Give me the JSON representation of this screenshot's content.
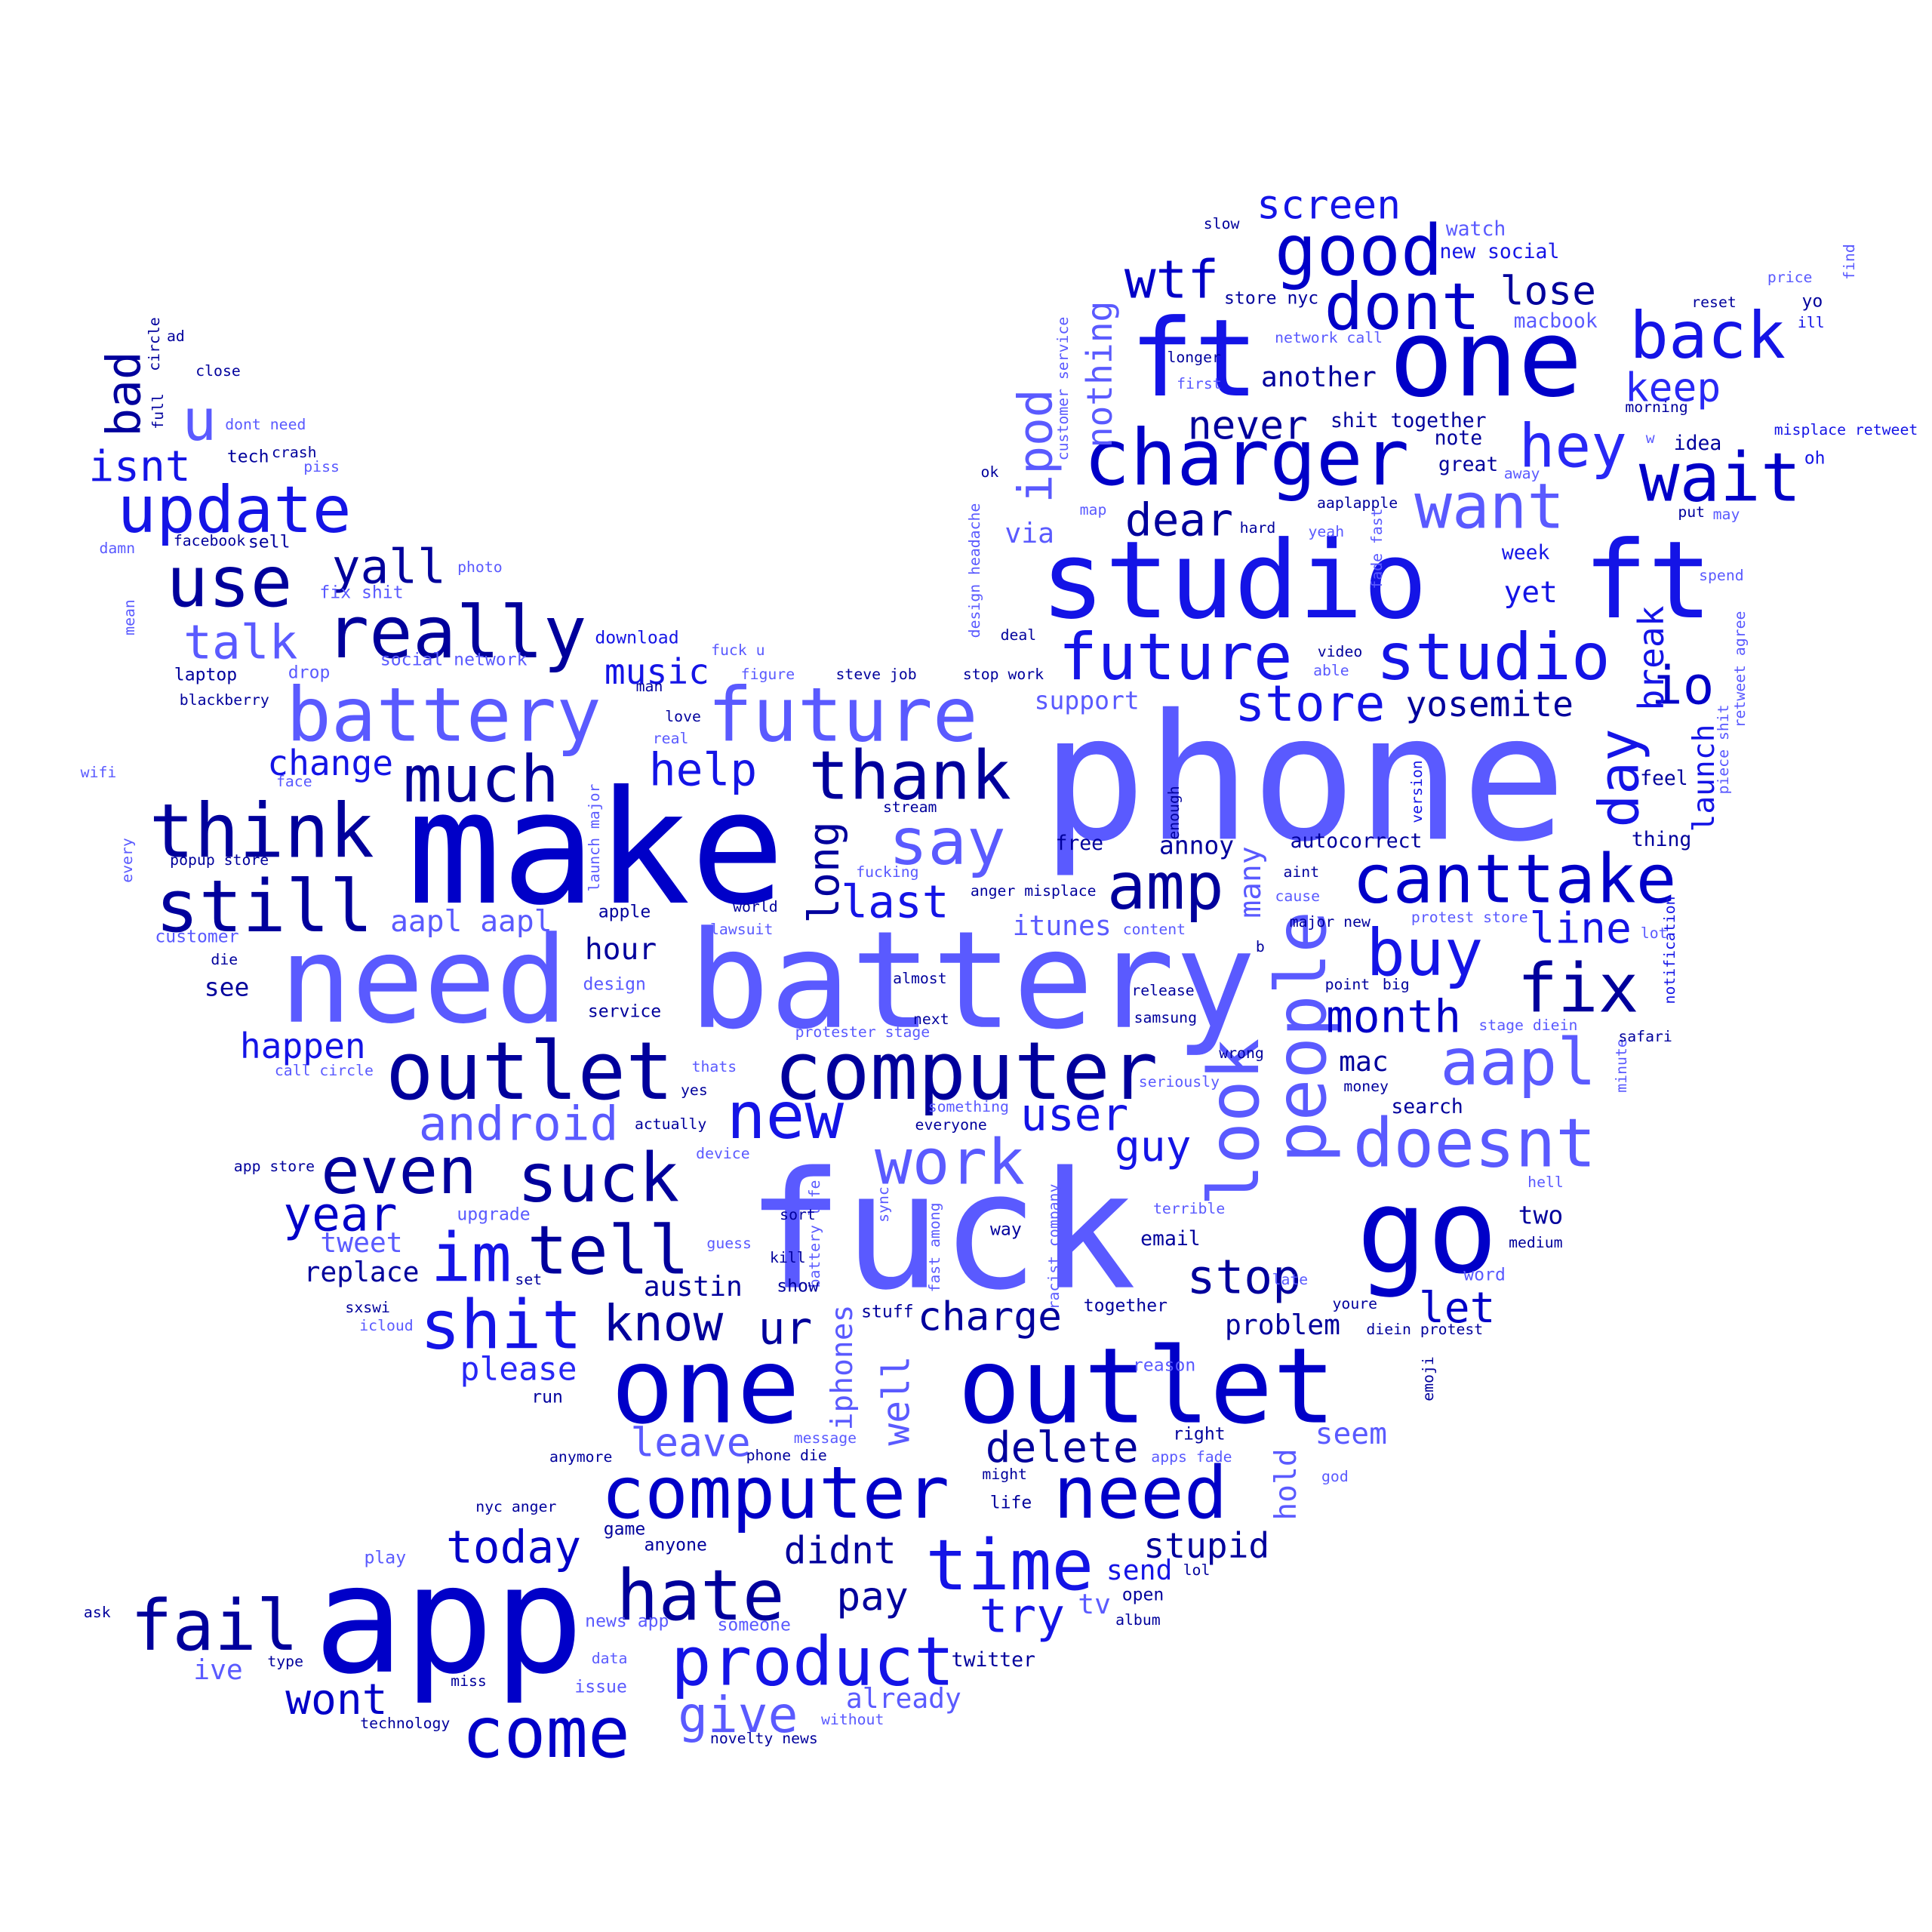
{
  "words": [
    {
      "t": "phone",
      "c": 4
    },
    {
      "t": "make",
      "c": 1
    },
    {
      "t": "battery",
      "c": 4
    },
    {
      "t": "fuck",
      "c": 4
    },
    {
      "t": "need",
      "c": 4
    },
    {
      "t": "app",
      "c": 1
    },
    {
      "t": "one",
      "c": 1
    },
    {
      "t": "outlet",
      "c": 1
    },
    {
      "t": "ft",
      "c": 2
    },
    {
      "t": "one",
      "c": 1
    },
    {
      "t": "studio",
      "c": 2
    },
    {
      "t": "ft",
      "c": 2
    },
    {
      "t": "go",
      "c": 1
    },
    {
      "t": "computer",
      "c": 5
    },
    {
      "t": "outlet",
      "c": 5
    },
    {
      "t": "battery",
      "c": 4
    },
    {
      "t": "future",
      "c": 4
    },
    {
      "t": "computer",
      "c": 1
    },
    {
      "t": "need",
      "c": 1
    },
    {
      "t": "charger",
      "c": 1
    },
    {
      "t": "future",
      "c": 2
    },
    {
      "t": "studio",
      "c": 2
    },
    {
      "t": "think",
      "c": 5
    },
    {
      "t": "still",
      "c": 5
    },
    {
      "t": "update",
      "c": 2
    },
    {
      "t": "really",
      "c": 5
    },
    {
      "t": "use",
      "c": 5
    },
    {
      "t": "product",
      "c": 2
    },
    {
      "t": "fail",
      "c": 5
    },
    {
      "t": "hate",
      "c": 5
    },
    {
      "t": "time",
      "c": 2
    },
    {
      "t": "come",
      "c": 1
    },
    {
      "t": "canttake",
      "c": 1
    },
    {
      "t": "people",
      "c": 4
    },
    {
      "t": "look",
      "c": 4
    },
    {
      "t": "suck",
      "c": 5
    },
    {
      "t": "even",
      "c": 5
    },
    {
      "t": "tell",
      "c": 5
    },
    {
      "t": "im",
      "c": 2
    },
    {
      "t": "shit",
      "c": 2
    },
    {
      "t": "know",
      "c": 5
    },
    {
      "t": "much",
      "c": 5
    },
    {
      "t": "thank",
      "c": 5
    },
    {
      "t": "say",
      "c": 4
    },
    {
      "t": "amp",
      "c": 5
    },
    {
      "t": "fix",
      "c": 5
    },
    {
      "t": "aapl",
      "c": 4
    },
    {
      "t": "doesnt",
      "c": 4
    },
    {
      "t": "new",
      "c": 2
    },
    {
      "t": "work",
      "c": 4
    },
    {
      "t": "good",
      "c": 1
    },
    {
      "t": "dont",
      "c": 1
    },
    {
      "t": "back",
      "c": 2
    },
    {
      "t": "hey",
      "c": 3
    },
    {
      "t": "wait",
      "c": 1
    },
    {
      "t": "want",
      "c": 4
    },
    {
      "t": "buy",
      "c": 2
    },
    {
      "t": "day",
      "c": 2
    },
    {
      "t": "io",
      "c": 1
    },
    {
      "t": "wtf",
      "c": 1
    },
    {
      "t": "screen",
      "c": 2
    },
    {
      "t": "lose",
      "c": 5
    },
    {
      "t": "keep",
      "c": 3
    },
    {
      "t": "dear",
      "c": 5
    },
    {
      "t": "never",
      "c": 5
    },
    {
      "t": "ipod",
      "c": 4
    },
    {
      "t": "nothing",
      "c": 4
    },
    {
      "t": "store",
      "c": 2
    },
    {
      "t": "yosemite",
      "c": 5
    },
    {
      "t": "month",
      "c": 1
    },
    {
      "t": "line",
      "c": 2
    },
    {
      "t": "launch",
      "c": 2
    },
    {
      "t": "break",
      "c": 2
    },
    {
      "t": "stop",
      "c": 5
    },
    {
      "t": "let",
      "c": 1
    },
    {
      "t": "delete",
      "c": 5
    },
    {
      "t": "leave",
      "c": 4
    },
    {
      "t": "well",
      "c": 4
    },
    {
      "t": "iphones",
      "c": 4
    },
    {
      "t": "charge",
      "c": 5
    },
    {
      "t": "ur",
      "c": 5
    },
    {
      "t": "please",
      "c": 3
    },
    {
      "t": "austin",
      "c": 5
    },
    {
      "t": "guy",
      "c": 2
    },
    {
      "t": "user",
      "c": 2
    },
    {
      "t": "android",
      "c": 4
    },
    {
      "t": "year",
      "c": 1
    },
    {
      "t": "replace",
      "c": 5
    },
    {
      "t": "tweet",
      "c": 4
    },
    {
      "t": "happen",
      "c": 2
    },
    {
      "t": "long",
      "c": 5
    },
    {
      "t": "help",
      "c": 2
    },
    {
      "t": "last",
      "c": 2
    },
    {
      "t": "music",
      "c": 2
    },
    {
      "t": "change",
      "c": 2
    },
    {
      "t": "talk",
      "c": 4
    },
    {
      "t": "yall",
      "c": 5
    },
    {
      "t": "u",
      "c": 4
    },
    {
      "t": "bad",
      "c": 5
    },
    {
      "t": "isnt",
      "c": 2
    },
    {
      "t": "today",
      "c": 1
    },
    {
      "t": "didnt",
      "c": 5
    },
    {
      "t": "pay",
      "c": 5
    },
    {
      "t": "try",
      "c": 2
    },
    {
      "t": "stupid",
      "c": 5
    },
    {
      "t": "give",
      "c": 4
    },
    {
      "t": "wont",
      "c": 1
    },
    {
      "t": "ive",
      "c": 4
    },
    {
      "t": "already",
      "c": 4
    },
    {
      "t": "send",
      "c": 2
    },
    {
      "t": "tv",
      "c": 4
    },
    {
      "t": "twitter",
      "c": 5
    },
    {
      "t": "hold",
      "c": 4
    },
    {
      "t": "seem",
      "c": 4
    },
    {
      "t": "problem",
      "c": 5
    },
    {
      "t": "two",
      "c": 5
    },
    {
      "t": "many",
      "c": 4
    },
    {
      "t": "annoy",
      "c": 5
    },
    {
      "t": "autocorrect",
      "c": 5
    },
    {
      "t": "itunes",
      "c": 4
    },
    {
      "t": "via",
      "c": 4
    },
    {
      "t": "aapl aapl",
      "c": 4
    },
    {
      "t": "hour",
      "c": 5
    },
    {
      "t": "mac",
      "c": 5
    },
    {
      "t": "yet",
      "c": 2
    },
    {
      "t": "another",
      "c": 5
    },
    {
      "t": "support",
      "c": 4
    },
    {
      "t": "see",
      "c": 5
    },
    {
      "t": "search",
      "c": 5
    },
    {
      "t": "email",
      "c": 5
    },
    {
      "t": "feel",
      "c": 5
    },
    {
      "t": "thing",
      "c": 5
    },
    {
      "t": "free",
      "c": 5
    },
    {
      "t": "week",
      "c": 2
    },
    {
      "t": "idea",
      "c": 5
    },
    {
      "t": "great",
      "c": 5
    },
    {
      "t": "note",
      "c": 5
    },
    {
      "t": "shit together",
      "c": 5
    },
    {
      "t": "watch",
      "c": 4
    },
    {
      "t": "new social",
      "c": 2
    },
    {
      "t": "macbook",
      "c": 4
    },
    {
      "t": "store nyc",
      "c": 5
    },
    {
      "t": "slow",
      "c": 5
    },
    {
      "t": "longer",
      "c": 5
    },
    {
      "t": "first",
      "c": 4
    },
    {
      "t": "network call",
      "c": 4
    },
    {
      "t": "customer service",
      "c": 4
    },
    {
      "t": "design headache",
      "c": 4
    },
    {
      "t": "map",
      "c": 4
    },
    {
      "t": "ok",
      "c": 5
    },
    {
      "t": "hard",
      "c": 5
    },
    {
      "t": "yeah",
      "c": 4
    },
    {
      "t": "aaplapple",
      "c": 5
    },
    {
      "t": "fade fast",
      "c": 4
    },
    {
      "t": "deal",
      "c": 5
    },
    {
      "t": "video",
      "c": 5
    },
    {
      "t": "able",
      "c": 4
    },
    {
      "t": "stop work",
      "c": 5
    },
    {
      "t": "retweet agree",
      "c": 4
    },
    {
      "t": "piece shit",
      "c": 4
    },
    {
      "t": "spend",
      "c": 4
    },
    {
      "t": "put",
      "c": 5
    },
    {
      "t": "may",
      "c": 4
    },
    {
      "t": "oh",
      "c": 2
    },
    {
      "t": "misplace retweet",
      "c": 2
    },
    {
      "t": "morning",
      "c": 5
    },
    {
      "t": "away",
      "c": 4
    },
    {
      "t": "w",
      "c": 4
    },
    {
      "t": "reset",
      "c": 5
    },
    {
      "t": "yo",
      "c": 5
    },
    {
      "t": "ill",
      "c": 2
    },
    {
      "t": "price",
      "c": 4
    },
    {
      "t": "find",
      "c": 4
    },
    {
      "t": "steve job",
      "c": 5
    },
    {
      "t": "figure",
      "c": 4
    },
    {
      "t": "fuck u",
      "c": 4
    },
    {
      "t": "download",
      "c": 2
    },
    {
      "t": "man",
      "c": 5
    },
    {
      "t": "love",
      "c": 5
    },
    {
      "t": "real",
      "c": 4
    },
    {
      "t": "stream",
      "c": 5
    },
    {
      "t": "fucking",
      "c": 4
    },
    {
      "t": "launch major",
      "c": 4
    },
    {
      "t": "enough",
      "c": 5
    },
    {
      "t": "version",
      "c": 2
    },
    {
      "t": "notification",
      "c": 2
    },
    {
      "t": "minute",
      "c": 4
    },
    {
      "t": "safari",
      "c": 5
    },
    {
      "t": "lot",
      "c": 4
    },
    {
      "t": "anger misplace",
      "c": 5
    },
    {
      "t": "content",
      "c": 4
    },
    {
      "t": "cause",
      "c": 4
    },
    {
      "t": "aint",
      "c": 5
    },
    {
      "t": "major new",
      "c": 5
    },
    {
      "t": "protest store",
      "c": 4
    },
    {
      "t": "b",
      "c": 5
    },
    {
      "t": "point",
      "c": 5
    },
    {
      "t": "big",
      "c": 5
    },
    {
      "t": "stage diein",
      "c": 4
    },
    {
      "t": "release",
      "c": 5
    },
    {
      "t": "samsung",
      "c": 5
    },
    {
      "t": "wrong",
      "c": 5
    },
    {
      "t": "money",
      "c": 5
    },
    {
      "t": "seriously",
      "c": 4
    },
    {
      "t": "almost",
      "c": 5
    },
    {
      "t": "next",
      "c": 5
    },
    {
      "t": "protester stage",
      "c": 4
    },
    {
      "t": "thats",
      "c": 4
    },
    {
      "t": "yes",
      "c": 5
    },
    {
      "t": "actually",
      "c": 5
    },
    {
      "t": "something",
      "c": 4
    },
    {
      "t": "everyone",
      "c": 5
    },
    {
      "t": "device",
      "c": 4
    },
    {
      "t": "apple",
      "c": 5
    },
    {
      "t": "world",
      "c": 5
    },
    {
      "t": "lawsuit",
      "c": 4
    },
    {
      "t": "design",
      "c": 4
    },
    {
      "t": "service",
      "c": 5
    },
    {
      "t": "hell",
      "c": 4
    },
    {
      "t": "terrible",
      "c": 4
    },
    {
      "t": "medium",
      "c": 5
    },
    {
      "t": "late",
      "c": 4
    },
    {
      "t": "word",
      "c": 4
    },
    {
      "t": "youre",
      "c": 5
    },
    {
      "t": "diein protest",
      "c": 5
    },
    {
      "t": "emoji",
      "c": 5
    },
    {
      "t": "reason",
      "c": 4
    },
    {
      "t": "together",
      "c": 5
    },
    {
      "t": "way",
      "c": 5
    },
    {
      "t": "racist company",
      "c": 4
    },
    {
      "t": "fast among",
      "c": 4
    },
    {
      "t": "sync",
      "c": 4
    },
    {
      "t": "battery life",
      "c": 4
    },
    {
      "t": "sort",
      "c": 5
    },
    {
      "t": "guess",
      "c": 4
    },
    {
      "t": "kill",
      "c": 5
    },
    {
      "t": "show",
      "c": 5
    },
    {
      "t": "stuff",
      "c": 5
    },
    {
      "t": "set",
      "c": 5
    },
    {
      "t": "upgrade",
      "c": 4
    },
    {
      "t": "sxswi",
      "c": 5
    },
    {
      "t": "icloud",
      "c": 4
    },
    {
      "t": "run",
      "c": 5
    },
    {
      "t": "anymore",
      "c": 5
    },
    {
      "t": "phone die",
      "c": 5
    },
    {
      "t": "message",
      "c": 4
    },
    {
      "t": "right",
      "c": 5
    },
    {
      "t": "apps fade",
      "c": 4
    },
    {
      "t": "god",
      "c": 4
    },
    {
      "t": "might",
      "c": 5
    },
    {
      "t": "life",
      "c": 5
    },
    {
      "t": "nyc anger",
      "c": 5
    },
    {
      "t": "game",
      "c": 5
    },
    {
      "t": "anyone",
      "c": 5
    },
    {
      "t": "lol",
      "c": 5
    },
    {
      "t": "open",
      "c": 5
    },
    {
      "t": "album",
      "c": 5
    },
    {
      "t": "play",
      "c": 4
    },
    {
      "t": "news app",
      "c": 4
    },
    {
      "t": "someone",
      "c": 4
    },
    {
      "t": "ask",
      "c": 5
    },
    {
      "t": "type",
      "c": 5
    },
    {
      "t": "data",
      "c": 4
    },
    {
      "t": "issue",
      "c": 4
    },
    {
      "t": "miss",
      "c": 5
    },
    {
      "t": "technology",
      "c": 5
    },
    {
      "t": "without",
      "c": 4
    },
    {
      "t": "novelty news",
      "c": 5
    },
    {
      "t": "app store",
      "c": 5
    },
    {
      "t": "call circle",
      "c": 4
    },
    {
      "t": "customer",
      "c": 4
    },
    {
      "t": "die",
      "c": 5
    },
    {
      "t": "every",
      "c": 4
    },
    {
      "t": "popup store",
      "c": 5
    },
    {
      "t": "face",
      "c": 4
    },
    {
      "t": "wifi",
      "c": 4
    },
    {
      "t": "blackberry",
      "c": 5
    },
    {
      "t": "laptop",
      "c": 5
    },
    {
      "t": "drop",
      "c": 4
    },
    {
      "t": "social network",
      "c": 4
    },
    {
      "t": "fix shit",
      "c": 4
    },
    {
      "t": "photo",
      "c": 4
    },
    {
      "t": "mean",
      "c": 4
    },
    {
      "t": "damn",
      "c": 4
    },
    {
      "t": "facebook",
      "c": 5
    },
    {
      "t": "sell",
      "c": 5
    },
    {
      "t": "tech",
      "c": 5
    },
    {
      "t": "crash",
      "c": 5
    },
    {
      "t": "piss",
      "c": 4
    },
    {
      "t": "dont need",
      "c": 4
    },
    {
      "t": "close",
      "c": 5
    },
    {
      "t": "full",
      "c": 5
    },
    {
      "t": "circle",
      "c": 5
    },
    {
      "t": "ad",
      "c": 5
    }
  ]
}
